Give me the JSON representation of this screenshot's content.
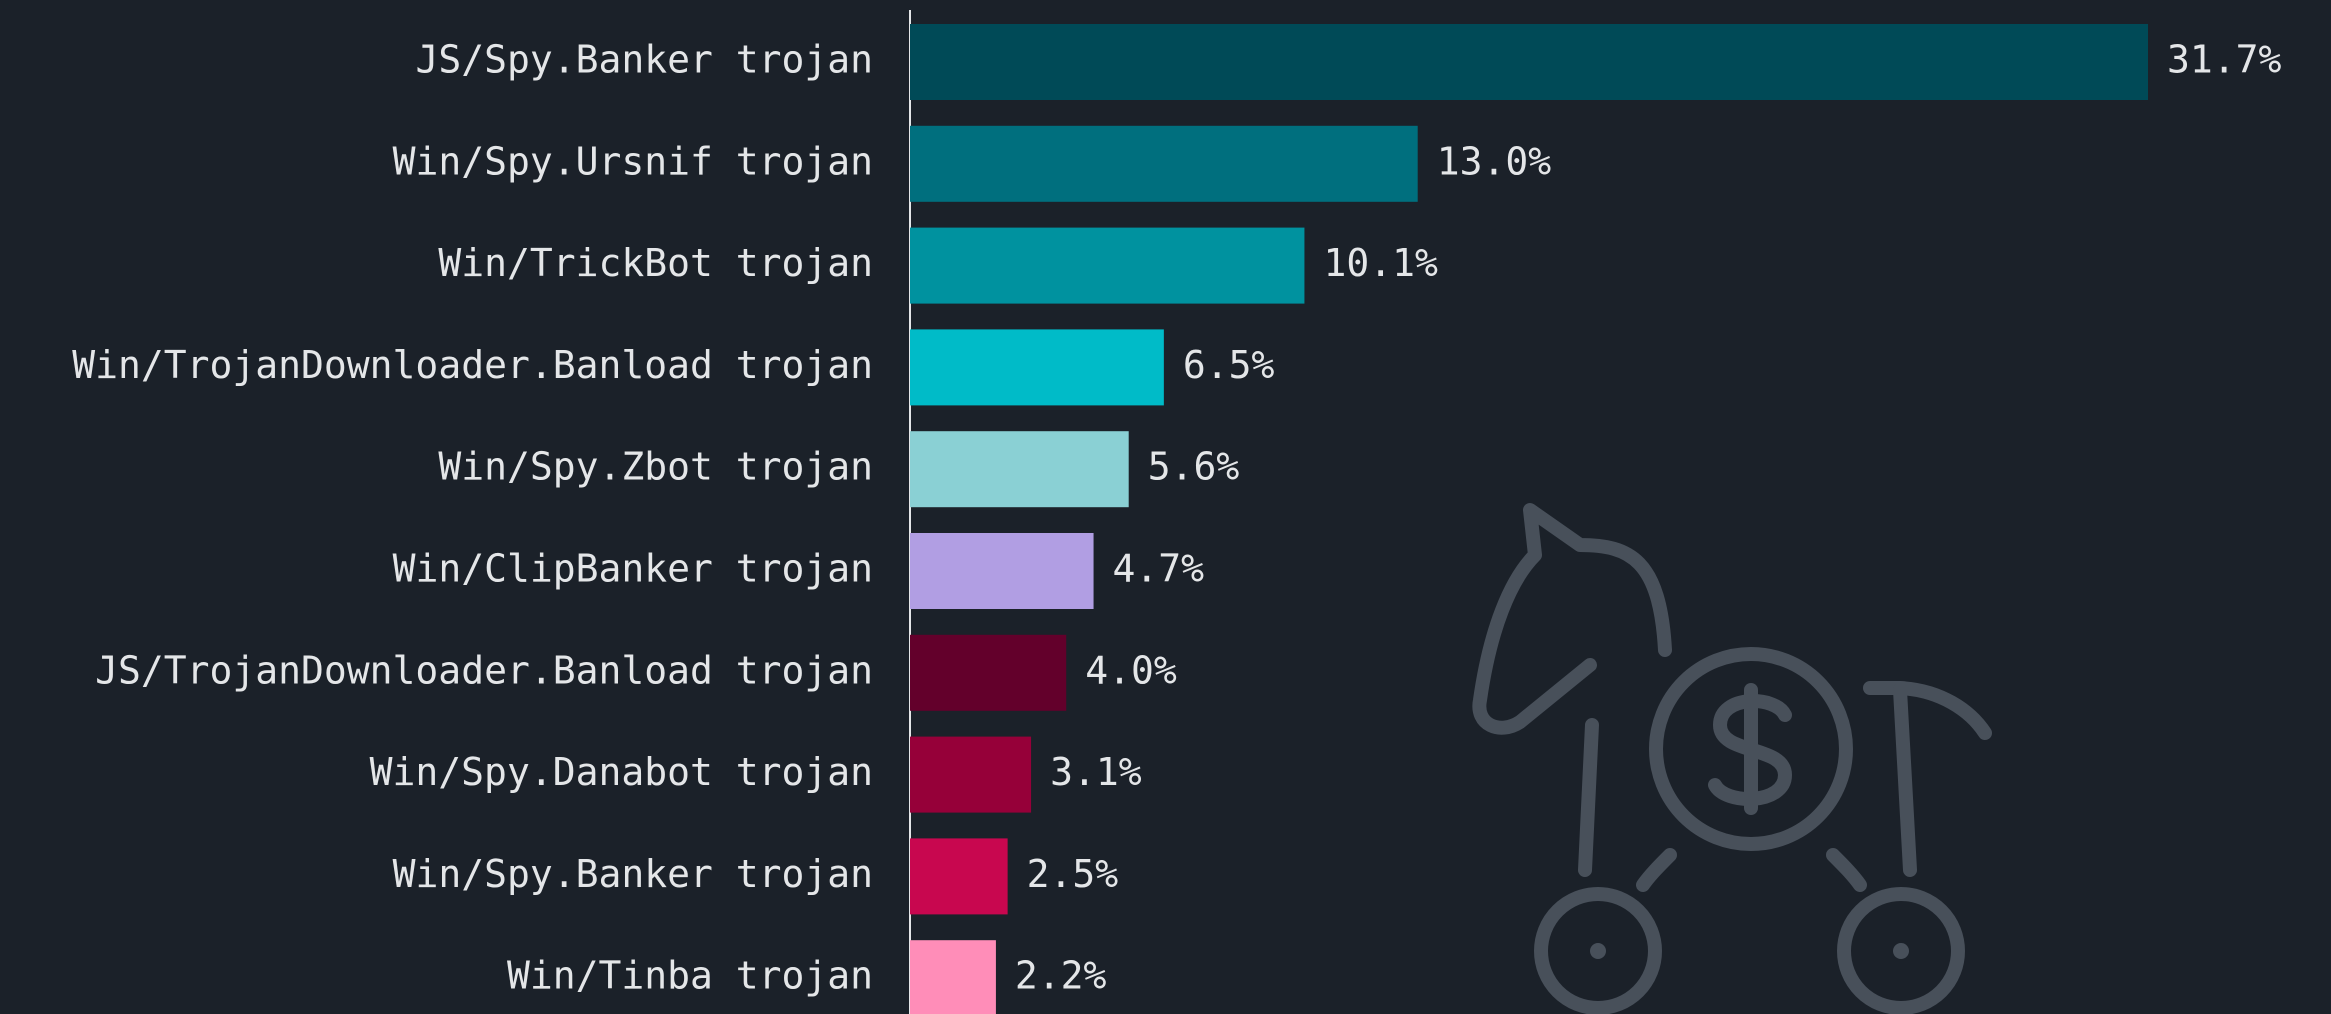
{
  "chart_data": {
    "type": "barh",
    "categories": [
      "JS/Spy.Banker trojan",
      "Win/Spy.Ursnif trojan",
      "Win/TrickBot trojan",
      "Win/TrojanDownloader.Banload trojan",
      "Win/Spy.Zbot trojan",
      "Win/ClipBanker trojan",
      "JS/TrojanDownloader.Banload trojan",
      "Win/Spy.Danabot trojan",
      "Win/Spy.Banker trojan",
      "Win/Tinba trojan"
    ],
    "values": [
      31.7,
      13.0,
      10.1,
      6.5,
      5.6,
      4.7,
      4.0,
      3.1,
      2.5,
      2.2
    ],
    "value_labels": [
      "31.7%",
      "13.0%",
      "10.1%",
      "6.5%",
      "5.6%",
      "4.7%",
      "4.0%",
      "3.1%",
      "2.5%",
      "2.2%"
    ],
    "colors": [
      "#004a57",
      "#006f7e",
      "#00929f",
      "#00bbc8",
      "#8ad0d4",
      "#b19ee3",
      "#63002b",
      "#960039",
      "#c8074f",
      "#ff8db8"
    ]
  }
}
